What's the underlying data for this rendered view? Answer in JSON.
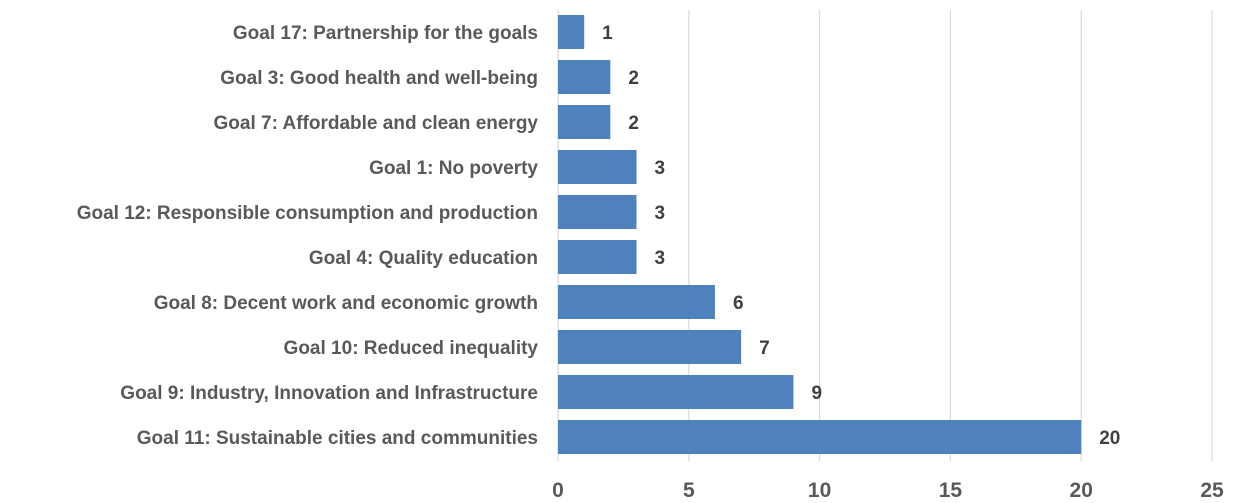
{
  "chart_data": {
    "type": "bar",
    "orientation": "horizontal",
    "categories": [
      "Goal 17: Partnership for the goals",
      "Goal 3: Good health and well-being",
      "Goal 7: Affordable and clean energy",
      "Goal 1: No poverty",
      "Goal 12: Responsible consumption and production",
      "Goal 4: Quality education",
      "Goal 8: Decent work and economic growth",
      "Goal 10: Reduced inequality",
      "Goal 9: Industry, Innovation and Infrastructure",
      "Goal 11: Sustainable cities and communities"
    ],
    "values": [
      1,
      2,
      2,
      3,
      3,
      3,
      6,
      7,
      9,
      20
    ],
    "xlim": [
      0,
      25
    ],
    "xticks": [
      0,
      5,
      10,
      15,
      20,
      25
    ],
    "title": "",
    "xlabel": "",
    "ylabel": "",
    "grid": "vertical",
    "legend": "none",
    "data_labels": true,
    "colors": {
      "bar": "#4f81bd",
      "grid": "#d9d9d9",
      "text": "#595959",
      "value_text": "#404040"
    }
  }
}
